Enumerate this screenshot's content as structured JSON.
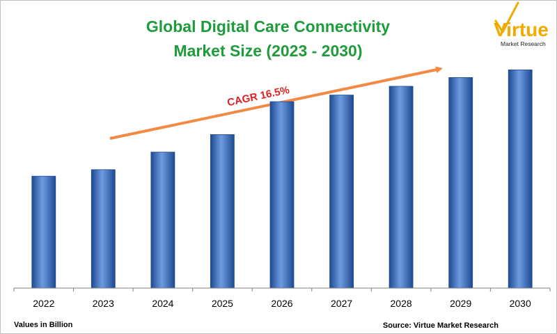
{
  "header": {
    "title_line1": "Global Digital Care Connectivity",
    "title_line2": "Market Size (2023 - 2030)"
  },
  "logo": {
    "brand": "Virtue",
    "tagline": "Market Research"
  },
  "annotation": {
    "cagr_label": "CAGR 16.5%"
  },
  "footer": {
    "units_note": "Values in Billion",
    "source": "Source: Virtue Market Research"
  },
  "colors": {
    "title": "#1e9b3a",
    "bar": "#3a6fc4",
    "bar_dark": "#1f4a93",
    "bar_light": "#6e9be0",
    "arrow": "#f28a45",
    "cagr_text": "#e02020",
    "axis": "#7f7f7f",
    "logo_orange": "#f2a900",
    "logo_green": "#3f9c35"
  },
  "chart_data": {
    "type": "bar",
    "title": "Global Digital Care Connectivity Market Size (2023 - 2030)",
    "categories": [
      "2022",
      "2023",
      "2024",
      "2025",
      "2026",
      "2027",
      "2028",
      "2029",
      "2030"
    ],
    "values": [
      5.1,
      5.4,
      6.2,
      7.0,
      8.5,
      8.8,
      9.2,
      9.6,
      9.95
    ],
    "ylim": [
      0,
      12.5
    ],
    "grid": false,
    "legend": "none",
    "xlabel": "",
    "ylabel": ""
  }
}
